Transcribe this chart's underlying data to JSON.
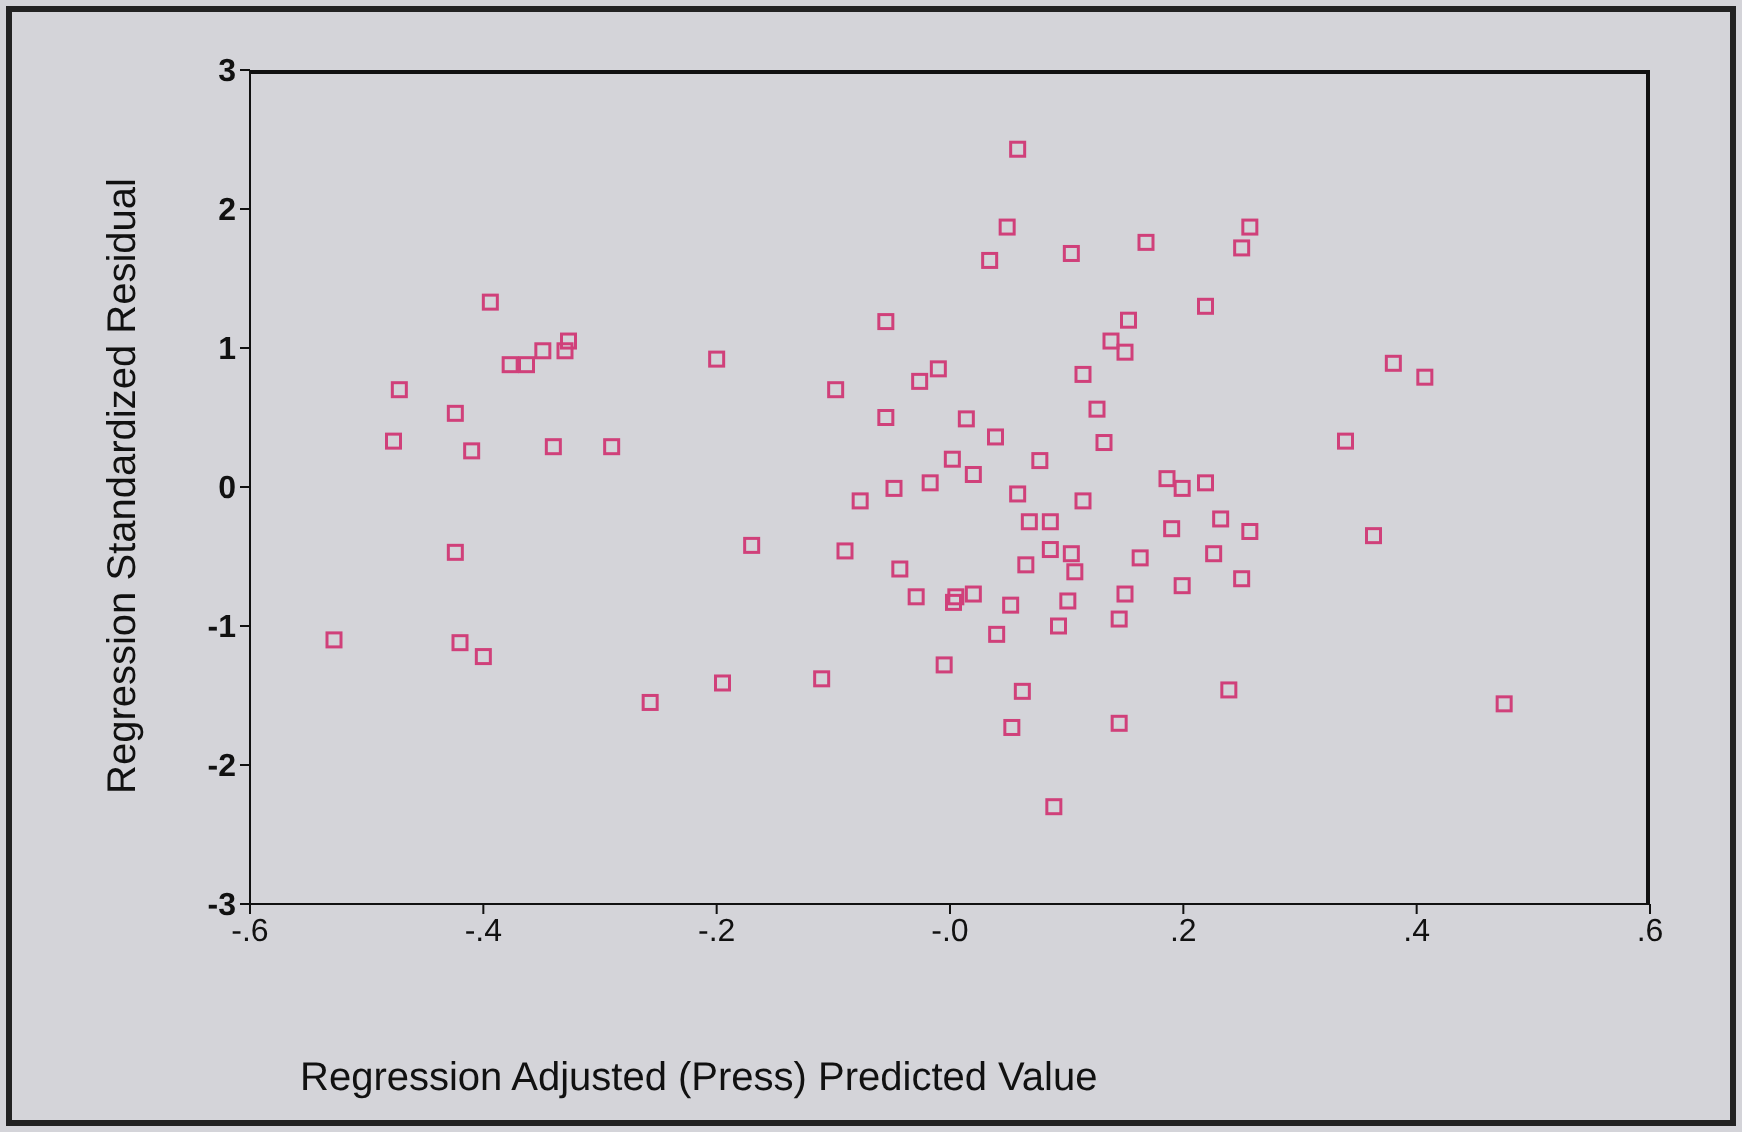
{
  "chart_data": {
    "type": "scatter",
    "xlabel": "Regression Adjusted (Press) Predicted Value",
    "ylabel": "Regression Standardized Residual",
    "xlim": [
      -0.6,
      0.6
    ],
    "ylim": [
      -3,
      3
    ],
    "xticks": [
      {
        "value": -0.6,
        "label": "-.6"
      },
      {
        "value": -0.4,
        "label": "-.4"
      },
      {
        "value": -0.2,
        "label": "-.2"
      },
      {
        "value": 0,
        "label": "-.0"
      },
      {
        "value": 0.2,
        "label": ".2"
      },
      {
        "value": 0.4,
        "label": ".4"
      },
      {
        "value": 0.6,
        "label": ".6"
      }
    ],
    "yticks": [
      -3,
      -2,
      -1,
      0,
      1,
      2,
      3
    ],
    "marker": "square",
    "x": [
      -0.528,
      -0.477,
      -0.472,
      -0.424,
      -0.424,
      -0.42,
      -0.41,
      -0.4,
      -0.394,
      -0.377,
      -0.363,
      -0.349,
      -0.34,
      -0.33,
      -0.327,
      -0.29,
      -0.257,
      -0.2,
      -0.195,
      -0.17,
      -0.11,
      -0.098,
      -0.09,
      -0.077,
      -0.055,
      -0.055,
      -0.048,
      -0.043,
      -0.029,
      -0.026,
      -0.017,
      -0.01,
      -0.005,
      0.002,
      0.005,
      0.014,
      0.02,
      0.02,
      0.058,
      0.049,
      0.034,
      0.104,
      0.168,
      0.257,
      0.25,
      0.219,
      0.153,
      0.138,
      0.15,
      0.114,
      0.38,
      0.407,
      0.126,
      0.039,
      0.132,
      0.339,
      0.077,
      0.058,
      0.114,
      0.186,
      0.199,
      0.219,
      0.068,
      0.086,
      0.19,
      0.232,
      0.257,
      0.363,
      0.065,
      0.086,
      0.104,
      0.107,
      0.163,
      0.226,
      0.25,
      0.199,
      0.003,
      0.052,
      0.101,
      0.15,
      0.145,
      0.093,
      0.04,
      0.062,
      0.239,
      0.053,
      0.145,
      0.089,
      0.475
    ],
    "values": [
      -1.1,
      0.33,
      0.7,
      0.53,
      -0.47,
      -1.12,
      0.26,
      -1.22,
      1.33,
      0.88,
      0.88,
      0.98,
      0.29,
      0.98,
      1.05,
      0.29,
      -1.55,
      0.92,
      -1.41,
      -0.42,
      -1.38,
      0.7,
      -0.46,
      -0.1,
      1.19,
      0.5,
      -0.01,
      -0.59,
      -0.79,
      0.76,
      0.03,
      0.85,
      -1.28,
      0.2,
      -0.79,
      0.49,
      0.09,
      -0.77,
      2.43,
      1.87,
      1.63,
      1.68,
      1.76,
      1.87,
      1.72,
      1.3,
      1.2,
      1.05,
      0.97,
      0.81,
      0.89,
      0.79,
      0.56,
      0.36,
      0.32,
      0.33,
      0.19,
      -0.05,
      -0.1,
      0.06,
      -0.01,
      0.03,
      -0.25,
      -0.25,
      -0.3,
      -0.23,
      -0.32,
      -0.35,
      -0.56,
      -0.45,
      -0.48,
      -0.61,
      -0.51,
      -0.48,
      -0.66,
      -0.71,
      -0.83,
      -0.85,
      -0.82,
      -0.77,
      -0.95,
      -1.0,
      -1.06,
      -1.47,
      -1.46,
      -1.73,
      -1.7,
      -2.3,
      -1.56
    ],
    "color": "#d0407a"
  }
}
